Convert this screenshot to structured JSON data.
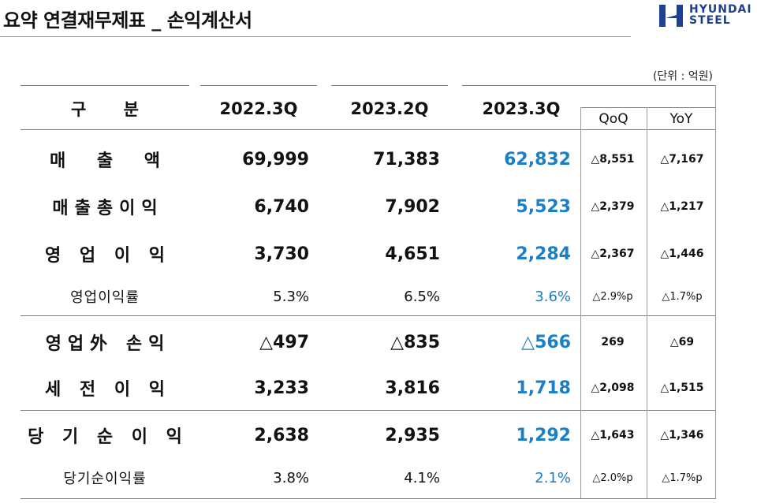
{
  "title": "요약 연결재무제표 _ 손익계산서",
  "logo": {
    "line1": "HYUNDAI",
    "line2": "STEEL"
  },
  "unit": "(단위 : 억원)",
  "header": {
    "label": "구 분",
    "col1": "2022.3Q",
    "col2": "2023.2Q",
    "col3": "2023.3Q",
    "qoq": "QoQ",
    "yoy": "YoY"
  },
  "rows": [
    {
      "label": "매 출 액",
      "v1": "69,999",
      "v2": "71,383",
      "v3": "62,832",
      "qoq": "△8,551",
      "yoy": "△7,167"
    },
    {
      "label": "매출총이익",
      "v1": "6,740",
      "v2": "7,902",
      "v3": "5,523",
      "qoq": "△2,379",
      "yoy": "△1,217"
    },
    {
      "label": "영 업 이 익",
      "v1": "3,730",
      "v2": "4,651",
      "v3": "2,284",
      "qoq": "△2,367",
      "yoy": "△1,446"
    },
    {
      "label": "영업이익률",
      "v1": "5.3%",
      "v2": "6.5%",
      "v3": "3.6%",
      "qoq": "△2.9%p",
      "yoy": "△1.7%p"
    },
    {
      "label": "영업外 손익",
      "v1": "△497",
      "v2": "△835",
      "v3": "△566",
      "qoq": "269",
      "yoy": "△69"
    },
    {
      "label": "세 전 이 익",
      "v1": "3,233",
      "v2": "3,816",
      "v3": "1,718",
      "qoq": "△2,098",
      "yoy": "△1,515"
    },
    {
      "label": "당 기 순 이 익",
      "v1": "2,638",
      "v2": "2,935",
      "v3": "1,292",
      "qoq": "△1,643",
      "yoy": "△1,346"
    },
    {
      "label": "당기순이익률",
      "v1": "3.8%",
      "v2": "4.1%",
      "v3": "2.1%",
      "qoq": "△2.0%p",
      "yoy": "△1.7%p"
    }
  ]
}
